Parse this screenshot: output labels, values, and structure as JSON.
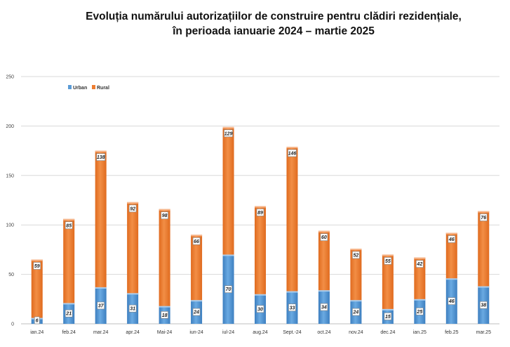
{
  "title": {
    "line1": "Evoluția numărului autorizațiilor de construire pentru clădiri rezidențiale,",
    "line2": "în perioada ianuarie 2024 – martie 2025"
  },
  "colors": {
    "urban": "#5b9bd5",
    "rural": "#ed7d31",
    "grid": "#d9d9d9"
  },
  "chart_data": {
    "type": "bar",
    "stacked": true,
    "categories": [
      "ian.24",
      "feb.24",
      "mar.24",
      "apr.24",
      "Mai-24",
      "iun-24",
      "iul-24",
      "aug.24",
      "Sept.-24",
      "oct.24",
      "nov.24",
      "dec.24",
      "ian.25",
      "feb.25",
      "mar.25"
    ],
    "series": [
      {
        "name": "Urban",
        "values": [
          6,
          21,
          37,
          31,
          18,
          24,
          70,
          30,
          33,
          34,
          24,
          15,
          25,
          46,
          38
        ]
      },
      {
        "name": "Rural",
        "values": [
          59,
          85,
          138,
          92,
          98,
          66,
          129,
          89,
          146,
          60,
          52,
          55,
          42,
          46,
          76
        ]
      }
    ],
    "ylim": [
      0,
      250
    ],
    "yticks": [
      0,
      50,
      100,
      150,
      200,
      250
    ],
    "grid": true,
    "legend_position": "top-left"
  }
}
